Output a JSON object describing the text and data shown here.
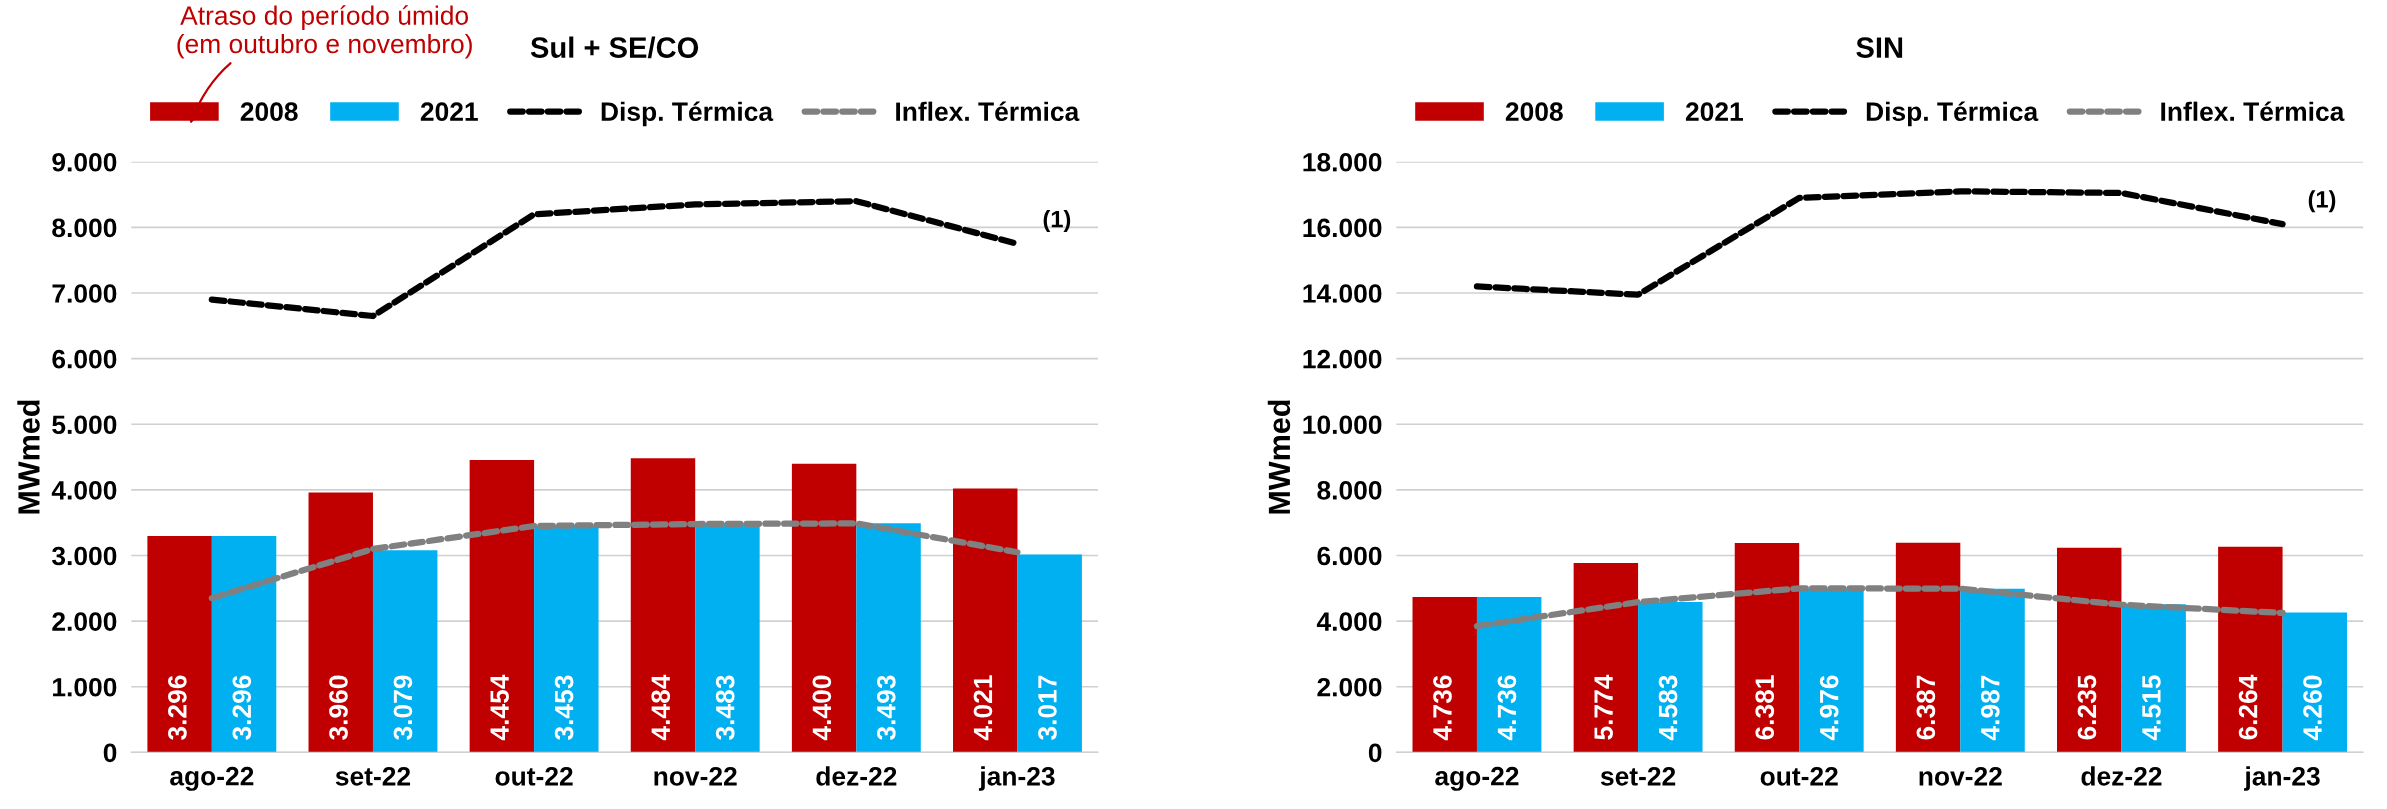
{
  "chart_data": [
    {
      "type": "bar",
      "title": "Sul + SE/CO",
      "ylabel": "MWmed",
      "categories": [
        "ago-22",
        "set-22",
        "out-22",
        "nov-22",
        "dez-22",
        "jan-23"
      ],
      "series": [
        {
          "name": "2008",
          "color": "#c00000",
          "values": [
            3296,
            3960,
            4454,
            4484,
            4400,
            4021
          ],
          "value_labels": [
            "3.296",
            "3.960",
            "4.454",
            "4.484",
            "4.400",
            "4.021"
          ]
        },
        {
          "name": "2021",
          "color": "#00b0f0",
          "values": [
            3296,
            3079,
            3453,
            3483,
            3493,
            3017
          ],
          "value_labels": [
            "3.296",
            "3.079",
            "3.453",
            "3.483",
            "3.493",
            "3.017"
          ]
        },
        {
          "name": "Disp. Térmica",
          "type": "line",
          "color": "#000000",
          "line_style": "dashed",
          "values": [
            6900,
            6650,
            8200,
            8350,
            8400,
            7750
          ]
        },
        {
          "name": "Inflex. Térmica",
          "type": "line",
          "color": "#808080",
          "line_style": "dashed",
          "values": [
            2350,
            3100,
            3450,
            3480,
            3490,
            3050
          ]
        }
      ],
      "ylim": [
        0,
        9000
      ],
      "yticks": [
        {
          "value": 0,
          "label": "0"
        },
        {
          "value": 1000,
          "label": "1.000"
        },
        {
          "value": 2000,
          "label": "2.000"
        },
        {
          "value": 3000,
          "label": "3.000"
        },
        {
          "value": 4000,
          "label": "4.000"
        },
        {
          "value": 5000,
          "label": "5.000"
        },
        {
          "value": 6000,
          "label": "6.000"
        },
        {
          "value": 7000,
          "label": "7.000"
        },
        {
          "value": 8000,
          "label": "8.000"
        },
        {
          "value": 9000,
          "label": "9.000"
        }
      ],
      "grid": "y",
      "legend": "top",
      "marker": "none",
      "annotations": [
        {
          "text": "(1)",
          "x": "jan-23",
          "y": 7750
        },
        "Atraso do período úmido\n(em outubro e novembro)"
      ]
    },
    {
      "type": "bar",
      "title": "SIN",
      "ylabel": "MWmed",
      "categories": [
        "ago-22",
        "set-22",
        "out-22",
        "nov-22",
        "dez-22",
        "jan-23"
      ],
      "series": [
        {
          "name": "2008",
          "color": "#c00000",
          "values": [
            4736,
            5774,
            6381,
            6387,
            6235,
            6264
          ],
          "value_labels": [
            "4.736",
            "5.774",
            "6.381",
            "6.387",
            "6.235",
            "6.264"
          ]
        },
        {
          "name": "2021",
          "color": "#00b0f0",
          "values": [
            4736,
            4583,
            4976,
            4987,
            4515,
            4260
          ],
          "value_labels": [
            "4.736",
            "4.583",
            "4.976",
            "4.987",
            "4.515",
            "4.260"
          ]
        },
        {
          "name": "Disp. Térmica",
          "type": "line",
          "color": "#000000",
          "line_style": "dashed",
          "values": [
            14200,
            13950,
            16900,
            17100,
            17050,
            16100
          ]
        },
        {
          "name": "Inflex. Térmica",
          "type": "line",
          "color": "#808080",
          "line_style": "dashed",
          "values": [
            3850,
            4580,
            5000,
            4990,
            4500,
            4250
          ]
        }
      ],
      "ylim": [
        0,
        18000
      ],
      "yticks": [
        {
          "value": 0,
          "label": "0"
        },
        {
          "value": 2000,
          "label": "2.000"
        },
        {
          "value": 4000,
          "label": "4.000"
        },
        {
          "value": 6000,
          "label": "6.000"
        },
        {
          "value": 8000,
          "label": "8.000"
        },
        {
          "value": 10000,
          "label": "10.000"
        },
        {
          "value": 12000,
          "label": "12.000"
        },
        {
          "value": 14000,
          "label": "14.000"
        },
        {
          "value": 16000,
          "label": "16.000"
        },
        {
          "value": 18000,
          "label": "18.000"
        }
      ],
      "grid": "y",
      "legend": "top",
      "marker": "none",
      "annotations": [
        {
          "text": "(1)",
          "x": "jan-23",
          "y": 16100
        }
      ]
    }
  ]
}
